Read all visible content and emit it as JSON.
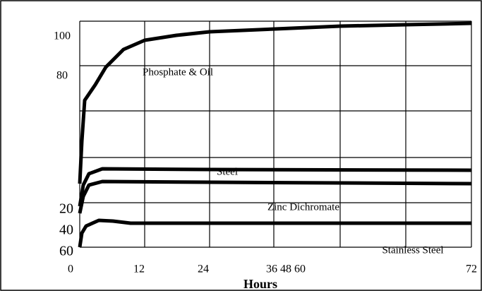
{
  "y_axis_labels": [
    "100",
    "80",
    "20",
    "40",
    "60"
  ],
  "x_axis_labels": [
    "0",
    "12",
    "24",
    "36 48 60",
    "72"
  ],
  "x_axis_title": "Hours",
  "curve_labels": [
    "Phosphate & Oil",
    "Steel",
    "Zinc Dichromate",
    "Stainless Steel"
  ]
}
